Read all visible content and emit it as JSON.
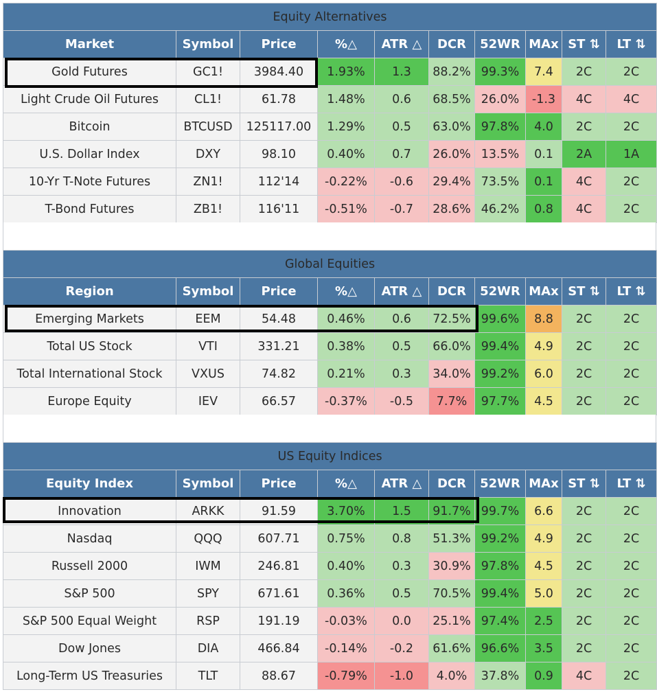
{
  "colors": {
    "header": "#4b77a2",
    "green_light": "#b6dfb0",
    "green_strong": "#56c454",
    "red_light": "#f6c3c3",
    "red_medium": "#f59292",
    "yellow": "#f2e78f",
    "orange": "#f3b35e"
  },
  "sections": [
    {
      "title": "Equity Alternatives",
      "columns": [
        "Market",
        "Symbol",
        "Price",
        "%△",
        "ATR △",
        "DCR",
        "52WR",
        "MAx",
        "ST ⇅",
        "LT ⇅"
      ],
      "rows": [
        {
          "name": "Gold Futures",
          "symbol": "GC1!",
          "price": "3984.40",
          "pct": "1.93%",
          "atr": "1.3",
          "dcr": "88.2%",
          "wr": "99.3%",
          "max": "7.4",
          "st": "2C",
          "lt": "2C",
          "c": [
            "g2",
            "g2",
            "g1",
            "g2",
            "y",
            "g1",
            "g1"
          ]
        },
        {
          "name": "Light Crude Oil Futures",
          "symbol": "CL1!",
          "price": "61.78",
          "pct": "1.48%",
          "atr": "0.6",
          "dcr": "68.5%",
          "wr": "26.0%",
          "max": "-1.3",
          "st": "4C",
          "lt": "4C",
          "c": [
            "g1",
            "g1",
            "g1",
            "r1",
            "r2",
            "r1",
            "r1"
          ]
        },
        {
          "name": "Bitcoin",
          "symbol": "BTCUSD",
          "price": "125117.00",
          "pct": "1.29%",
          "atr": "0.5",
          "dcr": "63.0%",
          "wr": "97.8%",
          "max": "4.0",
          "st": "2C",
          "lt": "2C",
          "c": [
            "g1",
            "g1",
            "g1",
            "g2",
            "g2",
            "g1",
            "g1"
          ]
        },
        {
          "name": "U.S. Dollar Index",
          "symbol": "DXY",
          "price": "98.10",
          "pct": "0.40%",
          "atr": "0.7",
          "dcr": "26.0%",
          "wr": "13.5%",
          "max": "0.1",
          "st": "2A",
          "lt": "1A",
          "c": [
            "g1",
            "g1",
            "r1",
            "r1",
            "g1",
            "g2",
            "g2"
          ]
        },
        {
          "name": "10-Yr T-Note Futures",
          "symbol": "ZN1!",
          "price": "112'14",
          "pct": "-0.22%",
          "atr": "-0.6",
          "dcr": "29.4%",
          "wr": "73.5%",
          "max": "0.1",
          "st": "4C",
          "lt": "2C",
          "c": [
            "r1",
            "r1",
            "r1",
            "g1",
            "g2",
            "r1",
            "g1"
          ]
        },
        {
          "name": "T-Bond Futures",
          "symbol": "ZB1!",
          "price": "116'11",
          "pct": "-0.51%",
          "atr": "-0.7",
          "dcr": "28.6%",
          "wr": "46.2%",
          "max": "0.8",
          "st": "4C",
          "lt": "2C",
          "c": [
            "r1",
            "r1",
            "r1",
            "g1",
            "g2",
            "r1",
            "g1"
          ]
        }
      ]
    },
    {
      "title": "Global Equities",
      "columns": [
        "Region",
        "Symbol",
        "Price",
        "%△",
        "ATR △",
        "DCR",
        "52WR",
        "MAx",
        "ST ⇅",
        "LT ⇅"
      ],
      "rows": [
        {
          "name": "Emerging Markets",
          "symbol": "EEM",
          "price": "54.48",
          "pct": "0.46%",
          "atr": "0.6",
          "dcr": "72.5%",
          "wr": "99.6%",
          "max": "8.8",
          "st": "2C",
          "lt": "2C",
          "c": [
            "g1",
            "g1",
            "g1",
            "g2",
            "o",
            "g1",
            "g1"
          ]
        },
        {
          "name": "Total US Stock",
          "symbol": "VTI",
          "price": "331.21",
          "pct": "0.38%",
          "atr": "0.5",
          "dcr": "66.0%",
          "wr": "99.4%",
          "max": "4.9",
          "st": "2C",
          "lt": "2C",
          "c": [
            "g1",
            "g1",
            "g1",
            "g2",
            "y",
            "g1",
            "g1"
          ]
        },
        {
          "name": "Total International Stock",
          "symbol": "VXUS",
          "price": "74.82",
          "pct": "0.21%",
          "atr": "0.3",
          "dcr": "34.0%",
          "wr": "99.2%",
          "max": "6.0",
          "st": "2C",
          "lt": "2C",
          "c": [
            "g1",
            "g1",
            "r1",
            "g2",
            "y",
            "g1",
            "g1"
          ]
        },
        {
          "name": "Europe Equity",
          "symbol": "IEV",
          "price": "66.57",
          "pct": "-0.37%",
          "atr": "-0.5",
          "dcr": "7.7%",
          "wr": "97.7%",
          "max": "4.5",
          "st": "2C",
          "lt": "2C",
          "c": [
            "r1",
            "r1",
            "r2",
            "g2",
            "y",
            "g1",
            "g1"
          ]
        }
      ]
    },
    {
      "title": "US Equity Indices",
      "columns": [
        "Equity Index",
        "Symbol",
        "Price",
        "%△",
        "ATR △",
        "DCR",
        "52WR",
        "MAx",
        "ST ⇅",
        "LT ⇅"
      ],
      "rows": [
        {
          "name": "Innovation",
          "symbol": "ARKK",
          "price": "91.59",
          "pct": "3.70%",
          "atr": "1.5",
          "dcr": "91.7%",
          "wr": "99.7%",
          "max": "6.6",
          "st": "2C",
          "lt": "2C",
          "c": [
            "g2",
            "g2",
            "g2",
            "g2",
            "y",
            "g1",
            "g1"
          ]
        },
        {
          "name": "Nasdaq",
          "symbol": "QQQ",
          "price": "607.71",
          "pct": "0.75%",
          "atr": "0.8",
          "dcr": "51.3%",
          "wr": "99.2%",
          "max": "4.9",
          "st": "2C",
          "lt": "2C",
          "c": [
            "g1",
            "g1",
            "g1",
            "g2",
            "y",
            "g1",
            "g1"
          ]
        },
        {
          "name": "Russell 2000",
          "symbol": "IWM",
          "price": "246.81",
          "pct": "0.40%",
          "atr": "0.3",
          "dcr": "30.9%",
          "wr": "97.8%",
          "max": "4.5",
          "st": "2C",
          "lt": "2C",
          "c": [
            "g1",
            "g1",
            "r1",
            "g2",
            "y",
            "g1",
            "g1"
          ]
        },
        {
          "name": "S&P 500",
          "symbol": "SPY",
          "price": "671.61",
          "pct": "0.36%",
          "atr": "0.5",
          "dcr": "70.5%",
          "wr": "99.4%",
          "max": "5.0",
          "st": "2C",
          "lt": "2C",
          "c": [
            "g1",
            "g1",
            "g1",
            "g2",
            "y",
            "g1",
            "g1"
          ]
        },
        {
          "name": "S&P 500 Equal Weight",
          "symbol": "RSP",
          "price": "191.19",
          "pct": "-0.03%",
          "atr": "0.0",
          "dcr": "25.1%",
          "wr": "97.4%",
          "max": "2.5",
          "st": "2C",
          "lt": "2C",
          "c": [
            "r1",
            "r1",
            "r1",
            "g2",
            "g2",
            "g1",
            "g1"
          ]
        },
        {
          "name": "Dow Jones",
          "symbol": "DIA",
          "price": "466.84",
          "pct": "-0.14%",
          "atr": "-0.2",
          "dcr": "61.6%",
          "wr": "96.6%",
          "max": "3.5",
          "st": "2C",
          "lt": "2C",
          "c": [
            "r1",
            "r1",
            "g1",
            "g2",
            "g2",
            "g1",
            "g1"
          ]
        },
        {
          "name": "Long-Term US Treasuries",
          "symbol": "TLT",
          "price": "88.67",
          "pct": "-0.79%",
          "atr": "-1.0",
          "dcr": "4.0%",
          "wr": "37.8%",
          "max": "0.9",
          "st": "4C",
          "lt": "2C",
          "c": [
            "r2",
            "r2",
            "r1",
            "g1",
            "g2",
            "r1",
            "g1"
          ]
        }
      ]
    }
  ]
}
